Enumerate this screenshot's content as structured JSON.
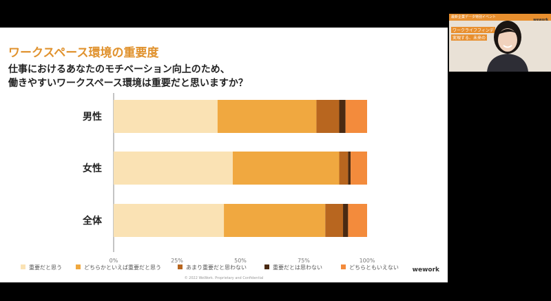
{
  "slide": {
    "title": "ワークスペース環境の重要度",
    "question_line1": "仕事におけるあなたのモチベーション向上のため、",
    "question_line2": "働きやすいワークスペース環境は重要だと思いますか？",
    "brand": "wework",
    "footer": "© 2022 WeWork. Proprietary and Confidential"
  },
  "video": {
    "header": "最新企業データ特別イベント",
    "brand": "wework",
    "line1": "ワークライフフィンデ",
    "line2": "実現する、未来の"
  },
  "colors": [
    "#fae2b4",
    "#f0a840",
    "#b8661f",
    "#4a2a12",
    "#f38b3c"
  ],
  "chart_data": {
    "type": "bar",
    "orientation": "horizontal",
    "stacked": true,
    "categories": [
      "男性",
      "女性",
      "全体"
    ],
    "series": [
      {
        "name": "重要だと思う",
        "values": [
          41,
          47,
          43.5
        ]
      },
      {
        "name": "どちらかといえば重要だと思う",
        "values": [
          39,
          42,
          40
        ]
      },
      {
        "name": "あまり重要だと思わない",
        "values": [
          9,
          3.5,
          7
        ]
      },
      {
        "name": "重要だとは思わない",
        "values": [
          2.5,
          1,
          2
        ]
      },
      {
        "name": "どちらともいえない",
        "values": [
          8.5,
          6.5,
          7.5
        ]
      }
    ],
    "xticks": [
      "0%",
      "25%",
      "50%",
      "75%",
      "100%"
    ],
    "xlim": [
      0,
      100
    ],
    "legend": "bottom"
  }
}
